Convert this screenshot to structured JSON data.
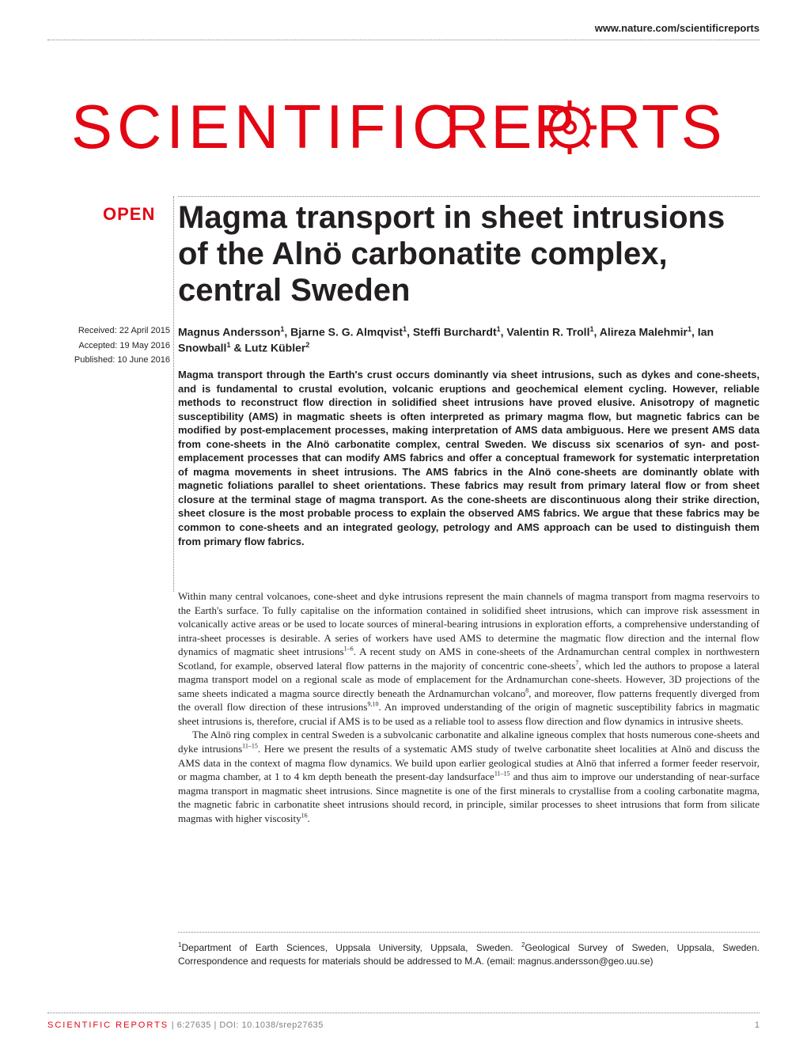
{
  "header": {
    "url": "www.nature.com/scientificreports"
  },
  "journal": {
    "logo_text": "SCIENTIFIC REPORTS",
    "logo_color": "#e30613"
  },
  "badge": {
    "text": "OPEN"
  },
  "article": {
    "title": "Magma transport in sheet intrusions of the Alnö carbonatite complex, central Sweden",
    "authors_html": "Magnus Andersson<sup>1</sup>, Bjarne S. G. Almqvist<sup>1</sup>, Steffi Burchardt<sup>1</sup>, Valentin R. Troll<sup>1</sup>, Alireza Malehmir<sup>1</sup>, Ian Snowball<sup>1</sup> & Lutz Kübler<sup>2</sup>",
    "abstract": "Magma transport through the Earth's crust occurs dominantly via sheet intrusions, such as dykes and cone-sheets, and is fundamental to crustal evolution, volcanic eruptions and geochemical element cycling. However, reliable methods to reconstruct flow direction in solidified sheet intrusions have proved elusive. Anisotropy of magnetic susceptibility (AMS) in magmatic sheets is often interpreted as primary magma flow, but magnetic fabrics can be modified by post-emplacement processes, making interpretation of AMS data ambiguous. Here we present AMS data from cone-sheets in the Alnö carbonatite complex, central Sweden. We discuss six scenarios of syn- and post-emplacement processes that can modify AMS fabrics and offer a conceptual framework for systematic interpretation of magma movements in sheet intrusions. The AMS fabrics in the Alnö cone-sheets are dominantly oblate with magnetic foliations parallel to sheet orientations. These fabrics may result from primary lateral flow or from sheet closure at the terminal stage of magma transport. As the cone-sheets are discontinuous along their strike direction, sheet closure is the most probable process to explain the observed AMS fabrics. We argue that these fabrics may be common to cone-sheets and an integrated geology, petrology and AMS approach can be used to distinguish them from primary flow fabrics.",
    "body_p1_html": "Within many central volcanoes, cone-sheet and dyke intrusions represent the main channels of magma transport from magma reservoirs to the Earth's surface. To fully capitalise on the information contained in solidified sheet intrusions, which can improve risk assessment in volcanically active areas or be used to locate sources of mineral-bearing intrusions in exploration efforts, a comprehensive understanding of intra-sheet processes is desirable. A series of workers have used AMS to determine the magmatic flow direction and the internal flow dynamics of magmatic sheet intrusions<sup>1–6</sup>. A recent study on AMS in cone-sheets of the Ardnamurchan central complex in northwestern Scotland, for example, observed lateral flow patterns in the majority of concentric cone-sheets<sup>7</sup>, which led the authors to propose a lateral magma transport model on a regional scale as mode of emplacement for the Ardnamurchan cone-sheets. However, 3D projections of the same sheets indicated a magma source directly beneath the Ardnamurchan volcano<sup>8</sup>, and moreover, flow patterns frequently diverged from the overall flow direction of these intrusions<sup>9,10</sup>. An improved understanding of the origin of magnetic susceptibility fabrics in magmatic sheet intrusions is, therefore, crucial if AMS is to be used as a reliable tool to assess flow direction and flow dynamics in intrusive sheets.",
    "body_p2_html": "The Alnö ring complex in central Sweden is a subvolcanic carbonatite and alkaline igneous complex that hosts numerous cone-sheets and dyke intrusions<sup>11–15</sup>. Here we present the results of a systematic AMS study of twelve carbonatite sheet localities at Alnö and discuss the AMS data in the context of magma flow dynamics. We build upon earlier geological studies at Alnö that inferred a former feeder reservoir, or magma chamber, at 1 to 4 km depth beneath the present-day landsurface<sup>11–15</sup> and thus aim to improve our understanding of near-surface magma transport in magmatic sheet intrusions. Since magnetite is one of the first minerals to crystallise from a cooling carbonatite magma, the magnetic fabric in carbonatite sheet intrusions should record, in principle, similar processes to sheet intrusions that form from silicate magmas with higher viscosity<sup>16</sup>.",
    "affiliations_html": "<sup>1</sup>Department of Earth Sciences, Uppsala University, Uppsala, Sweden. <sup>2</sup>Geological Survey of Sweden, Uppsala, Sweden. Correspondence and requests for materials should be addressed to M.A. (email: magnus.andersson@geo.uu.se)"
  },
  "dates": {
    "received": "Received: 22 April 2015",
    "accepted": "Accepted: 19 May 2016",
    "published": "Published: 10 June 2016"
  },
  "footer": {
    "journal_name": "SCIENTIFIC REPORTS",
    "citation": " | 6:27635 | DOI: 10.1038/srep27635",
    "page_number": "1"
  },
  "colors": {
    "accent": "#e30613",
    "text": "#231f20",
    "footer_grey": "#808080",
    "background": "#ffffff"
  },
  "typography": {
    "title_fontsize": 40,
    "authors_fontsize": 14,
    "abstract_fontsize": 13,
    "body_fontsize": 13,
    "footer_fontsize": 11,
    "dates_fontsize": 11
  }
}
